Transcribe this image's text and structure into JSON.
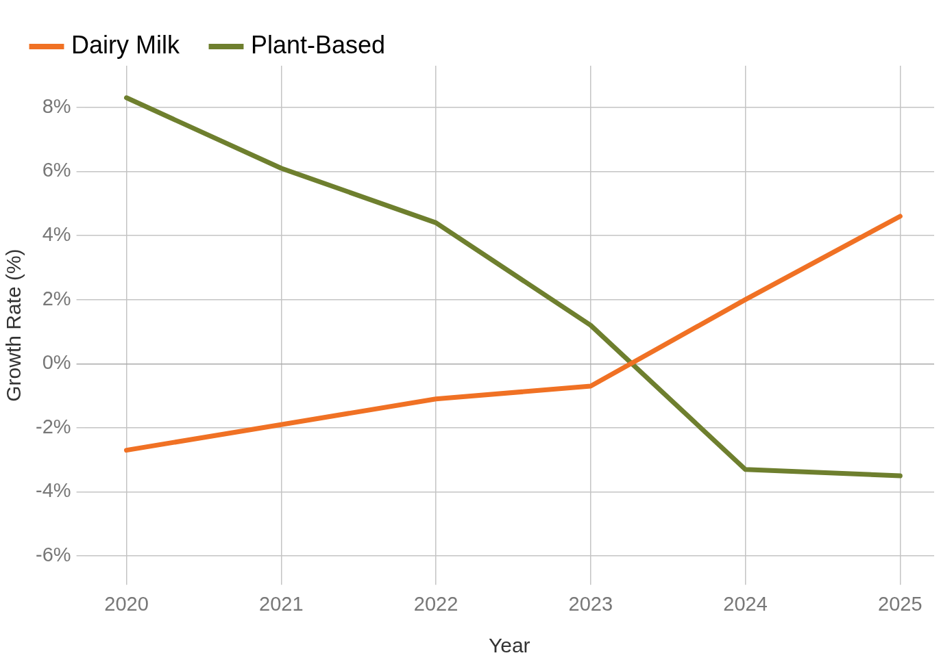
{
  "chart_data": {
    "type": "line",
    "xlabel": "Year",
    "ylabel": "Growth Rate (%)",
    "x": [
      2020,
      2021,
      2022,
      2023,
      2024,
      2025
    ],
    "xlim": [
      2019.73,
      2025.22
    ],
    "xticks": [
      2020,
      2021,
      2022,
      2023,
      2024,
      2025
    ],
    "ylim": [
      -6.9,
      9.3
    ],
    "yticks": [
      {
        "value": -6,
        "label": "-6%"
      },
      {
        "value": -4,
        "label": "-4%"
      },
      {
        "value": -2,
        "label": "-2%"
      },
      {
        "value": 0,
        "label": "0%"
      },
      {
        "value": 2,
        "label": "2%"
      },
      {
        "value": 4,
        "label": "4%"
      },
      {
        "value": 6,
        "label": "6%"
      },
      {
        "value": 8,
        "label": "8%"
      }
    ],
    "series": [
      {
        "name": "Dairy Milk",
        "color": "#f07124",
        "values": [
          -2.7,
          -1.9,
          -1.1,
          -0.7,
          2.0,
          4.6
        ]
      },
      {
        "name": "Plant-Based",
        "color": "#6e7f2e",
        "values": [
          8.3,
          6.1,
          4.4,
          1.2,
          -3.3,
          -3.5
        ]
      }
    ],
    "grid": true,
    "legend": "top left",
    "marker": "none",
    "line_style": "solid"
  }
}
